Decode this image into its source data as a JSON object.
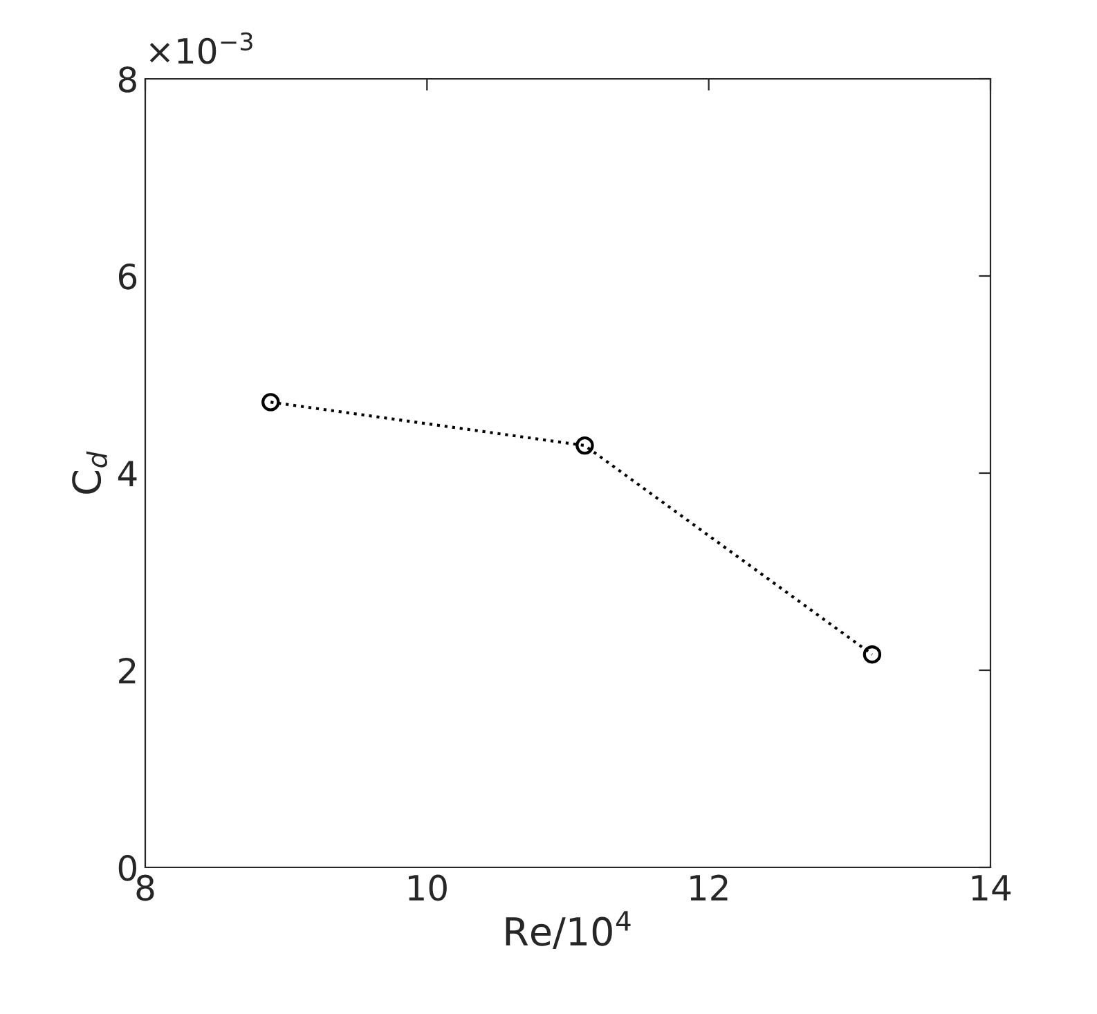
{
  "chart_data": {
    "type": "line",
    "xlabel": "Re/10$^{4}$",
    "ylabel": "C$_{d}$",
    "x": [
      8.89,
      11.12,
      13.16
    ],
    "series": [
      {
        "color": "#000000",
        "values": [
          4.72,
          4.28,
          2.16
        ]
      }
    ],
    "xlim": [
      8,
      14
    ],
    "xticks": [
      8,
      10,
      12,
      14
    ],
    "ylim": [
      0,
      8
    ],
    "yticks": [
      0,
      2,
      4,
      6,
      8
    ],
    "annotations": [
      "×10$^{−3}$"
    ],
    "marker": "circle",
    "line_style": "dotted",
    "grid": false,
    "legend": false
  }
}
